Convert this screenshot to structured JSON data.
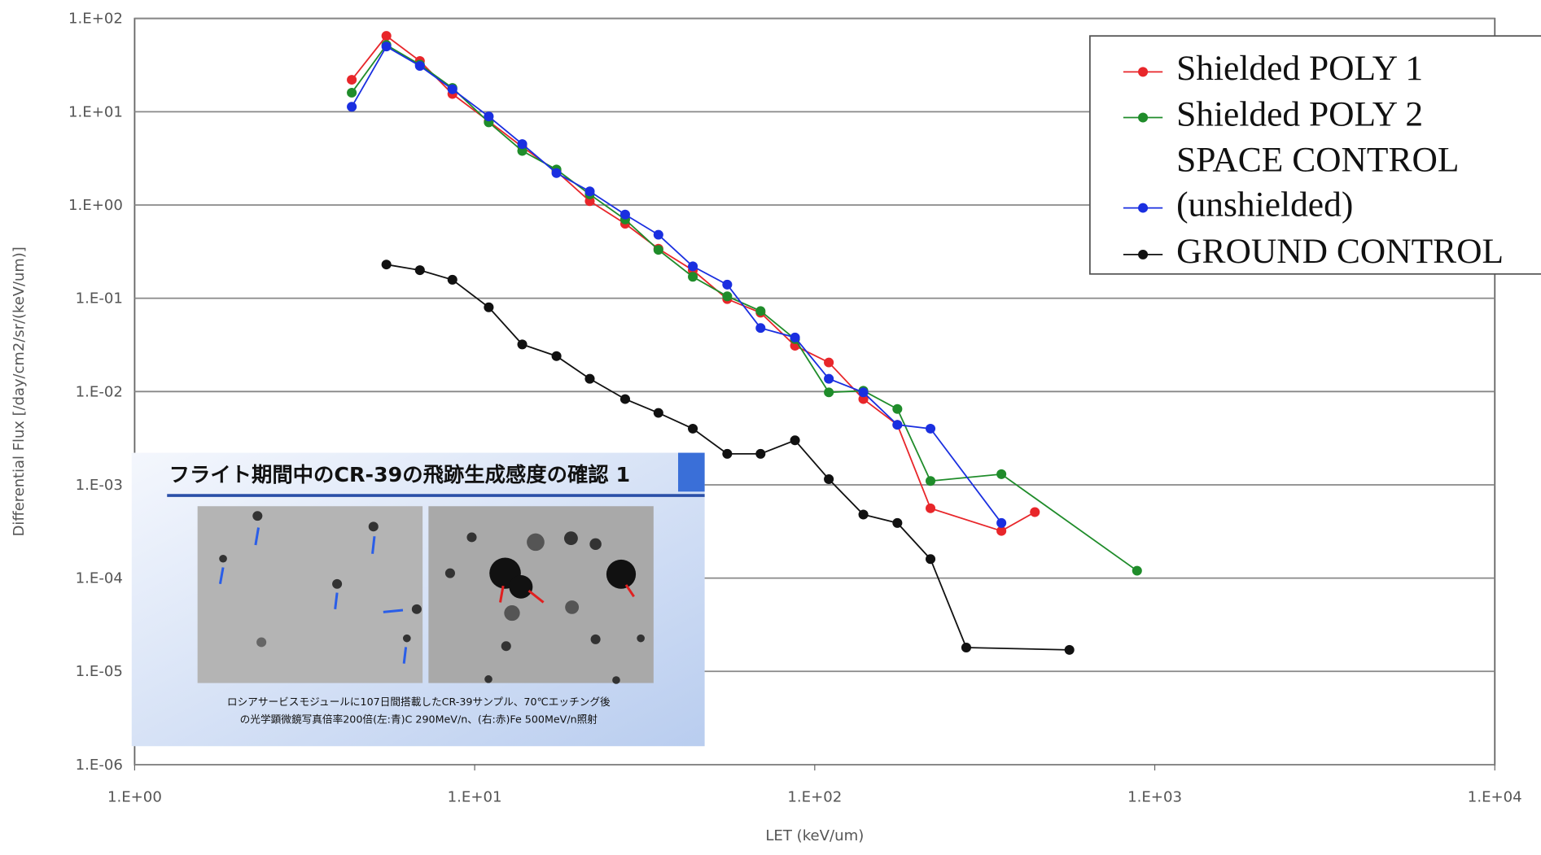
{
  "chart_data": {
    "type": "line",
    "xlabel": "LET (keV/um)",
    "ylabel": "Differential Flux [/day/cm2/sr/(keV/um)]",
    "xscale": "log",
    "yscale": "log",
    "grid": true,
    "legend": "upper right",
    "xlim": [
      1,
      10000
    ],
    "xticks": [
      {
        "value": 1,
        "label": "1.E+00"
      },
      {
        "value": 10,
        "label": "1.E+01"
      },
      {
        "value": 100,
        "label": "1.E+02"
      },
      {
        "value": 1000,
        "label": "1.E+03"
      },
      {
        "value": 10000,
        "label": "1.E+04"
      }
    ],
    "ylim": [
      1e-06,
      100
    ],
    "yticks": [
      {
        "value": 100,
        "label": "1.E+02"
      },
      {
        "value": 10,
        "label": "1.E+01"
      },
      {
        "value": 1,
        "label": "1.E+00"
      },
      {
        "value": 0.1,
        "label": "1.E-01"
      },
      {
        "value": 0.01,
        "label": "1.E-02"
      },
      {
        "value": 0.001,
        "label": "1.E-03"
      },
      {
        "value": 0.0001,
        "label": "1.E-04"
      },
      {
        "value": 1e-05,
        "label": "1.E-05"
      },
      {
        "value": 1e-06,
        "label": "1.E-06"
      }
    ],
    "series": [
      {
        "name": "Shielded POLY 1",
        "color": "#e8262a",
        "x": [
          4.35,
          5.5,
          6.9,
          8.6,
          11,
          13.8,
          17.4,
          21.8,
          27.7,
          34.7,
          43.8,
          55.3,
          69.3,
          87.5,
          110,
          139,
          175,
          219,
          354,
          444
        ],
        "values": [
          22,
          65,
          35,
          15.5,
          7.9,
          4.2,
          2.3,
          1.1,
          0.63,
          0.34,
          0.2,
          0.098,
          0.07,
          0.031,
          0.0205,
          0.0083,
          0.0044,
          0.00056,
          0.00032,
          0.00051
        ]
      },
      {
        "name": "Shielded POLY 2",
        "color": "#1f8c2a",
        "x": [
          4.35,
          5.5,
          6.9,
          8.6,
          11,
          13.8,
          17.4,
          21.8,
          27.7,
          34.7,
          43.8,
          55.3,
          69.3,
          87.5,
          110,
          139,
          175,
          219,
          354,
          887
        ],
        "values": [
          16,
          52,
          32,
          18,
          7.7,
          3.8,
          2.4,
          1.3,
          0.7,
          0.33,
          0.17,
          0.105,
          0.073,
          0.0365,
          0.0098,
          0.0102,
          0.0065,
          0.0011,
          0.0013,
          0.00012
        ]
      },
      {
        "name": "SPACE CONTROL (unshielded)",
        "color": "#1a2fe0",
        "x": [
          4.35,
          5.5,
          6.9,
          8.6,
          11,
          13.8,
          17.4,
          21.8,
          27.7,
          34.7,
          43.8,
          55.3,
          69.3,
          87.5,
          110,
          139,
          175,
          219,
          354
        ],
        "values": [
          11.3,
          50,
          31,
          17.4,
          8.9,
          4.5,
          2.2,
          1.4,
          0.79,
          0.48,
          0.22,
          0.14,
          0.048,
          0.038,
          0.0137,
          0.0098,
          0.0044,
          0.004,
          0.00039
        ]
      },
      {
        "name": "GROUND CONTROL",
        "color": "#111111",
        "x": [
          5.5,
          6.9,
          8.6,
          11,
          13.8,
          17.4,
          21.8,
          27.7,
          34.7,
          43.8,
          55.3,
          69.3,
          87.5,
          110,
          139,
          175,
          219,
          279,
          561
        ],
        "values": [
          0.23,
          0.2,
          0.158,
          0.08,
          0.032,
          0.024,
          0.0137,
          0.0083,
          0.0059,
          0.004,
          0.00215,
          0.00215,
          0.003,
          0.00115,
          0.00048,
          0.00039,
          0.00016,
          1.8e-05,
          1.7e-05
        ]
      }
    ]
  },
  "inset": {
    "title": "フライト期間中のCR-39の飛跡生成感度の確認 1",
    "caption": [
      "ロシアサービスモジュールに107日間搭載したCR-39サンプル、70℃エッチング後",
      "の光学顕微鏡写真倍率200倍(左:青)C 290MeV/n、(右:赤)Fe 500MeV/n照射"
    ]
  }
}
